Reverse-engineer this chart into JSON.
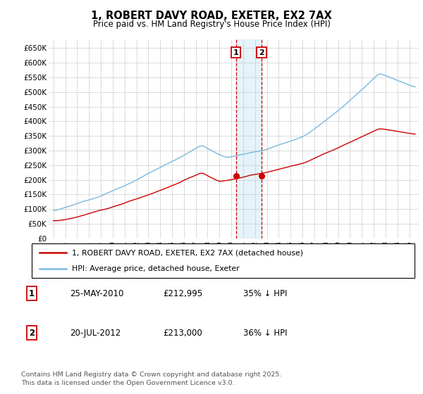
{
  "title": "1, ROBERT DAVY ROAD, EXETER, EX2 7AX",
  "subtitle": "Price paid vs. HM Land Registry's House Price Index (HPI)",
  "ylim": [
    0,
    680000
  ],
  "yticks": [
    0,
    50000,
    100000,
    150000,
    200000,
    250000,
    300000,
    350000,
    400000,
    450000,
    500000,
    550000,
    600000,
    650000
  ],
  "ytick_labels": [
    "£0",
    "£50K",
    "£100K",
    "£150K",
    "£200K",
    "£250K",
    "£300K",
    "£350K",
    "£400K",
    "£450K",
    "£500K",
    "£550K",
    "£600K",
    "£650K"
  ],
  "hpi_color": "#7ab8de",
  "price_color": "#cc0000",
  "vline_color": "#cc0000",
  "shade_color": "#daeef8",
  "background_color": "#ffffff",
  "grid_color": "#cccccc",
  "xlim_start": 1994.6,
  "xlim_end": 2025.8,
  "transactions": [
    {
      "label": "1",
      "date_num": 2010.38,
      "price": 212995
    },
    {
      "label": "2",
      "date_num": 2012.54,
      "price": 213000
    }
  ],
  "legend_line1": "1, ROBERT DAVY ROAD, EXETER, EX2 7AX (detached house)",
  "legend_line2": "HPI: Average price, detached house, Exeter",
  "table_rows": [
    {
      "num": "1",
      "date": "25-MAY-2010",
      "price": "£212,995",
      "hpi": "35% ↓ HPI"
    },
    {
      "num": "2",
      "date": "20-JUL-2012",
      "price": "£213,000",
      "hpi": "36% ↓ HPI"
    }
  ],
  "footer": "Contains HM Land Registry data © Crown copyright and database right 2025.\nThis data is licensed under the Open Government Licence v3.0."
}
